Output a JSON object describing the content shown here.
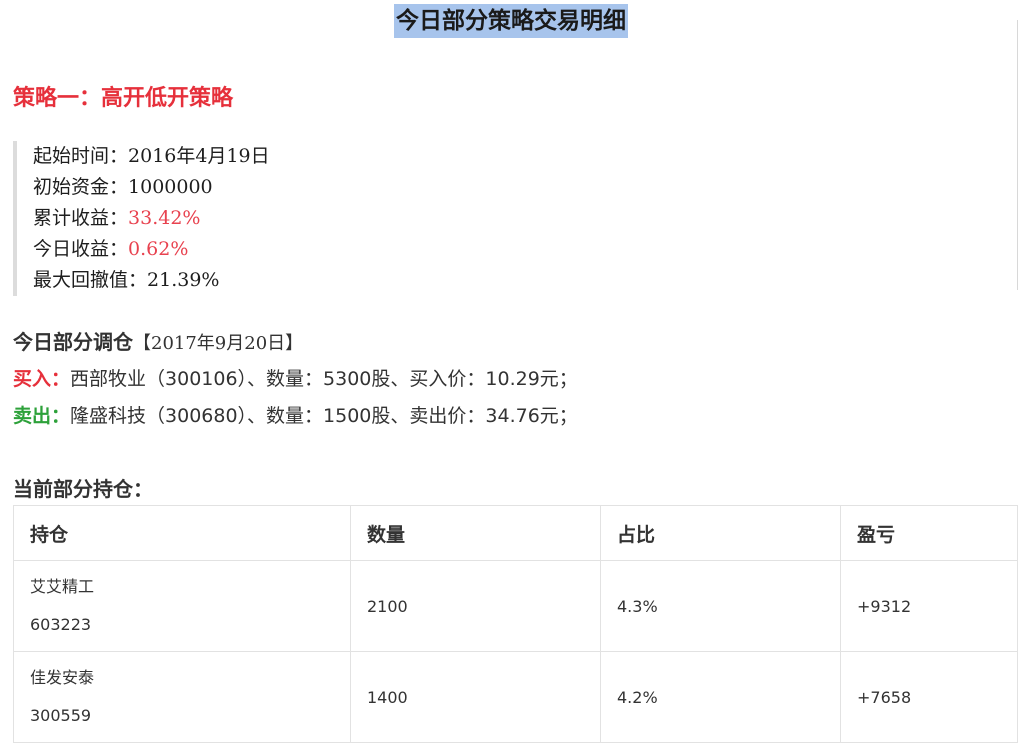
{
  "title": "今日部分策略交易明细",
  "strategy": {
    "heading": "策略一：高开低开策略",
    "stats": [
      {
        "label": "起始时间：",
        "value": "2016年4月19日",
        "highlight": false
      },
      {
        "label": "初始资金：",
        "value": "1000000",
        "highlight": false
      },
      {
        "label": "累计收益：",
        "value": "33.42%",
        "highlight": true
      },
      {
        "label": "今日收益：",
        "value": "0.62%",
        "highlight": true
      },
      {
        "label": "最大回撤值：",
        "value": "21.39%",
        "highlight": false
      }
    ]
  },
  "adjustment": {
    "heading": "今日部分调仓",
    "date": "【2017年9月20日】",
    "buy": {
      "label": "买入：",
      "text": "西部牧业（300106）、数量：5300股、买入价：10.29元；",
      "color": "#e6303b"
    },
    "sell": {
      "label": "卖出：",
      "text": "隆盛科技（300680）、数量：1500股、卖出价：34.76元；",
      "color": "#2da13a"
    }
  },
  "holdings": {
    "heading": "当前部分持仓：",
    "columns": [
      "持仓",
      "数量",
      "占比",
      "盈亏"
    ],
    "rows": [
      {
        "name": "艾艾精工",
        "code": "603223",
        "quantity": "2100",
        "ratio": "4.3%",
        "pnl": "+9312"
      },
      {
        "name": "佳发安泰",
        "code": "300559",
        "quantity": "1400",
        "ratio": "4.2%",
        "pnl": "+7658"
      }
    ]
  }
}
